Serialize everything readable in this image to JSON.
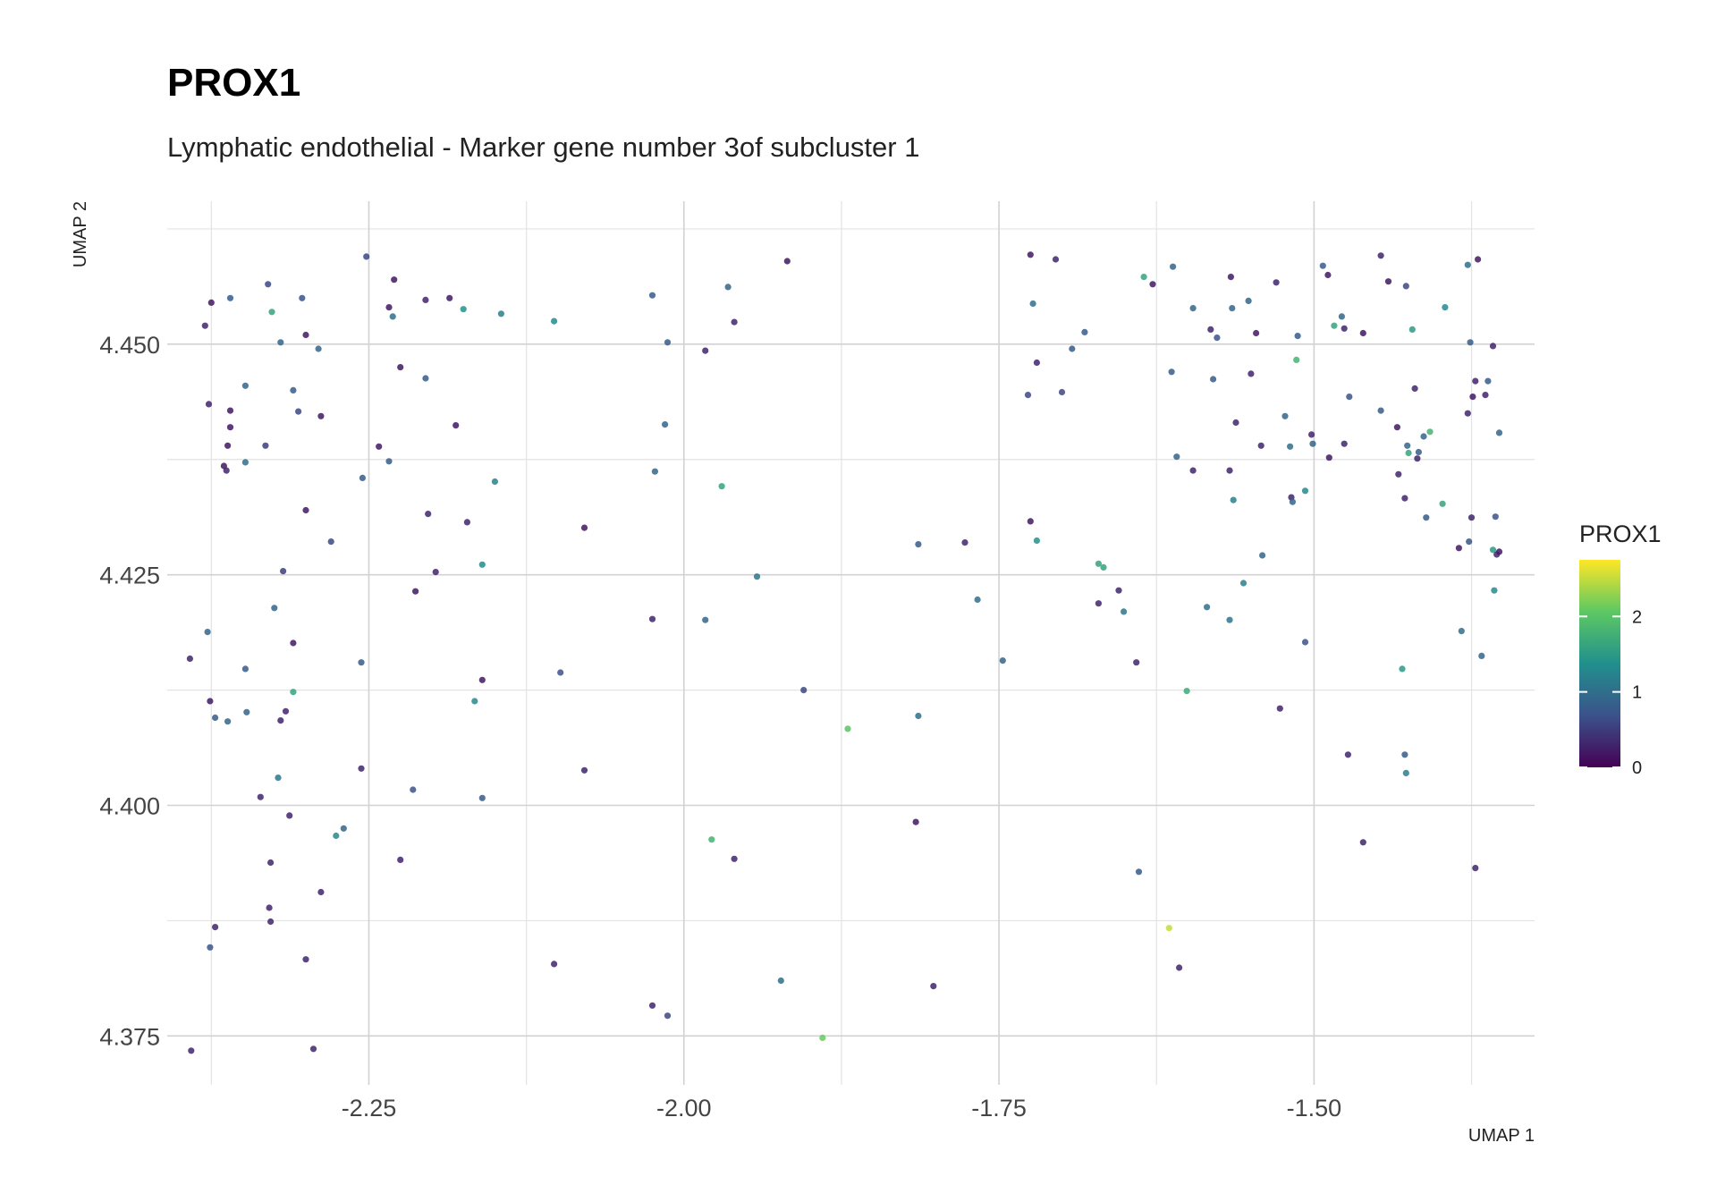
{
  "chart_data": {
    "type": "scatter",
    "title": "PROX1",
    "subtitle": "Lymphatic endothelial - Marker gene number 3of subcluster 1",
    "xlabel": "UMAP 1",
    "ylabel": "UMAP 2",
    "xlim": [
      -2.41,
      -1.325
    ],
    "ylim": [
      4.3697,
      4.4655
    ],
    "x_ticks": [
      -2.25,
      -2.0,
      -1.75,
      -1.5
    ],
    "x_tick_labels": [
      "-2.25",
      "-2.00",
      "-1.75",
      "-1.50"
    ],
    "y_ticks": [
      4.375,
      4.4,
      4.425,
      4.45
    ],
    "y_tick_labels": [
      "4.375",
      "4.400",
      "4.425",
      "4.450"
    ],
    "grid": true,
    "legend": {
      "title": "PROX1",
      "type": "colorbar",
      "placement": "right",
      "range": [
        0,
        2.75
      ],
      "ticks": [
        0,
        1,
        2
      ],
      "tick_labels": [
        "0",
        "1",
        "2"
      ],
      "colormap": "viridis",
      "colors": [
        "#440154",
        "#3b528b",
        "#21908c",
        "#5dc863",
        "#fde725"
      ]
    },
    "points": [
      [
        -2.375,
        4.4545,
        0.2
      ],
      [
        -2.38,
        4.452,
        0.3
      ],
      [
        -2.36,
        4.455,
        0.8
      ],
      [
        -2.33,
        4.4565,
        0.6
      ],
      [
        -2.327,
        4.4535,
        1.6
      ],
      [
        -2.303,
        4.455,
        0.7
      ],
      [
        -2.3,
        4.451,
        0.2
      ],
      [
        -2.32,
        4.4502,
        0.9
      ],
      [
        -2.29,
        4.4495,
        0.9
      ],
      [
        -2.252,
        4.4595,
        0.6
      ],
      [
        -2.23,
        4.457,
        0.2
      ],
      [
        -2.234,
        4.454,
        0.2
      ],
      [
        -2.231,
        4.453,
        1.0
      ],
      [
        -2.205,
        4.4548,
        0.3
      ],
      [
        -2.186,
        4.455,
        0.2
      ],
      [
        -2.175,
        4.4538,
        1.4
      ],
      [
        -2.145,
        4.4533,
        1.2
      ],
      [
        -2.103,
        4.4525,
        1.3
      ],
      [
        -2.025,
        4.4553,
        0.8
      ],
      [
        -2.013,
        4.4502,
        0.8
      ],
      [
        -1.965,
        4.4562,
        0.9
      ],
      [
        -1.96,
        4.4524,
        0.3
      ],
      [
        -1.918,
        4.459,
        0.2
      ],
      [
        -1.983,
        4.4493,
        0.3
      ],
      [
        -2.377,
        4.4435,
        0.3
      ],
      [
        -2.36,
        4.4428,
        0.2
      ],
      [
        -2.36,
        4.441,
        0.2
      ],
      [
        -2.362,
        4.439,
        0.2
      ],
      [
        -2.365,
        4.4368,
        0.2
      ],
      [
        -2.363,
        4.4363,
        0.3
      ],
      [
        -2.348,
        4.4455,
        0.9
      ],
      [
        -2.348,
        4.4372,
        1.0
      ],
      [
        -2.332,
        4.439,
        0.5
      ],
      [
        -2.31,
        4.445,
        0.8
      ],
      [
        -2.306,
        4.4427,
        0.6
      ],
      [
        -2.288,
        4.4422,
        0.2
      ],
      [
        -2.225,
        4.4475,
        0.2
      ],
      [
        -2.205,
        4.4463,
        0.8
      ],
      [
        -2.242,
        4.4389,
        0.2
      ],
      [
        -2.234,
        4.4373,
        0.8
      ],
      [
        -2.181,
        4.4412,
        0.2
      ],
      [
        -2.015,
        4.4413,
        0.9
      ],
      [
        -2.023,
        4.4362,
        0.9
      ],
      [
        -1.97,
        4.4346,
        1.6
      ],
      [
        -2.255,
        4.4355,
        0.8
      ],
      [
        -2.3,
        4.432,
        0.2
      ],
      [
        -2.28,
        4.4286,
        0.6
      ],
      [
        -2.203,
        4.4316,
        0.3
      ],
      [
        -2.172,
        4.4307,
        0.3
      ],
      [
        -2.15,
        4.4351,
        1.2
      ],
      [
        -2.16,
        4.4261,
        1.3
      ],
      [
        -2.079,
        4.4301,
        0.2
      ],
      [
        -1.942,
        4.4248,
        1.1
      ],
      [
        -2.318,
        4.4254,
        0.5
      ],
      [
        -2.213,
        4.4232,
        0.2
      ],
      [
        -2.197,
        4.4253,
        0.3
      ],
      [
        -2.025,
        4.4202,
        0.3
      ],
      [
        -1.983,
        4.4201,
        0.9
      ],
      [
        -2.378,
        4.4188,
        0.9
      ],
      [
        -2.392,
        4.4159,
        0.3
      ],
      [
        -2.325,
        4.4214,
        0.9
      ],
      [
        -2.31,
        4.4176,
        0.2
      ],
      [
        -2.348,
        4.4148,
        0.8
      ],
      [
        -2.376,
        4.4113,
        0.2
      ],
      [
        -2.372,
        4.4095,
        0.8
      ],
      [
        -2.362,
        4.4091,
        0.9
      ],
      [
        -2.347,
        4.4101,
        0.9
      ],
      [
        -2.31,
        4.4123,
        1.6
      ],
      [
        -2.316,
        4.4102,
        0.3
      ],
      [
        -2.32,
        4.4092,
        0.3
      ],
      [
        -2.256,
        4.4155,
        0.8
      ],
      [
        -2.16,
        4.4136,
        0.2
      ],
      [
        -2.166,
        4.4113,
        1.3
      ],
      [
        -2.098,
        4.4144,
        0.7
      ],
      [
        -1.905,
        4.4125,
        0.6
      ],
      [
        -1.87,
        4.4083,
        2.0
      ],
      [
        -1.814,
        4.4097,
        1.0
      ],
      [
        -2.322,
        4.403,
        1.1
      ],
      [
        -2.336,
        4.4009,
        0.3
      ],
      [
        -2.256,
        4.404,
        0.3
      ],
      [
        -2.215,
        4.4017,
        0.7
      ],
      [
        -2.16,
        4.4008,
        0.8
      ],
      [
        -2.079,
        4.4038,
        0.3
      ],
      [
        -2.313,
        4.3989,
        0.3
      ],
      [
        -2.27,
        4.3975,
        0.9
      ],
      [
        -2.276,
        4.3967,
        1.3
      ],
      [
        -1.978,
        4.3963,
        1.8
      ],
      [
        -1.96,
        4.3942,
        0.3
      ],
      [
        -1.816,
        4.3982,
        0.2
      ],
      [
        -2.328,
        4.3938,
        0.3
      ],
      [
        -2.225,
        4.3941,
        0.3
      ],
      [
        -2.288,
        4.3906,
        0.3
      ],
      [
        -2.329,
        4.3889,
        0.3
      ],
      [
        -2.328,
        4.3874,
        0.3
      ],
      [
        -2.372,
        4.3868,
        0.3
      ],
      [
        -2.376,
        4.3846,
        0.7
      ],
      [
        -2.3,
        4.3833,
        0.3
      ],
      [
        -2.103,
        4.3828,
        0.3
      ],
      [
        -1.923,
        4.381,
        1.0
      ],
      [
        -1.802,
        4.3804,
        0.3
      ],
      [
        -2.025,
        4.3783,
        0.3
      ],
      [
        -2.013,
        4.3772,
        0.6
      ],
      [
        -1.89,
        4.3748,
        2.1
      ],
      [
        -2.391,
        4.3734,
        0.3
      ],
      [
        -2.294,
        4.3736,
        0.3
      ],
      [
        -1.725,
        4.4597,
        0.2
      ],
      [
        -1.705,
        4.4592,
        0.3
      ],
      [
        -1.723,
        4.4544,
        1.0
      ],
      [
        -1.682,
        4.4513,
        0.8
      ],
      [
        -1.692,
        4.4495,
        0.8
      ],
      [
        -1.72,
        4.448,
        0.3
      ],
      [
        -1.727,
        4.4445,
        0.6
      ],
      [
        -1.7,
        4.4448,
        0.6
      ],
      [
        -1.635,
        4.4573,
        1.6
      ],
      [
        -1.628,
        4.4565,
        0.2
      ],
      [
        -1.612,
        4.4584,
        0.9
      ],
      [
        -1.596,
        4.4539,
        0.9
      ],
      [
        -1.582,
        4.4516,
        0.3
      ],
      [
        -1.577,
        4.4507,
        0.7
      ],
      [
        -1.566,
        4.4573,
        0.2
      ],
      [
        -1.565,
        4.4539,
        0.9
      ],
      [
        -1.552,
        4.4547,
        0.9
      ],
      [
        -1.546,
        4.4512,
        0.2
      ],
      [
        -1.53,
        4.4567,
        0.3
      ],
      [
        -1.513,
        4.4509,
        0.8
      ],
      [
        -1.493,
        4.4585,
        0.8
      ],
      [
        -1.489,
        4.4575,
        0.2
      ],
      [
        -1.484,
        4.452,
        1.6
      ],
      [
        -1.478,
        4.453,
        0.9
      ],
      [
        -1.476,
        4.4517,
        0.3
      ],
      [
        -1.461,
        4.4512,
        0.2
      ],
      [
        -1.447,
        4.4596,
        0.3
      ],
      [
        -1.441,
        4.4568,
        0.2
      ],
      [
        -1.427,
        4.4563,
        0.6
      ],
      [
        -1.422,
        4.4516,
        1.5
      ],
      [
        -1.396,
        4.454,
        1.3
      ],
      [
        -1.378,
        4.4586,
        1.0
      ],
      [
        -1.37,
        4.4592,
        0.2
      ],
      [
        -1.376,
        4.4502,
        0.8
      ],
      [
        -1.358,
        4.4498,
        0.3
      ],
      [
        -1.514,
        4.4483,
        1.8
      ],
      [
        -1.613,
        4.447,
        0.8
      ],
      [
        -1.58,
        4.4462,
        0.8
      ],
      [
        -1.55,
        4.4468,
        0.3
      ],
      [
        -1.472,
        4.4443,
        0.7
      ],
      [
        -1.447,
        4.4428,
        0.8
      ],
      [
        -1.42,
        4.4452,
        0.3
      ],
      [
        -1.372,
        4.446,
        0.3
      ],
      [
        -1.362,
        4.446,
        0.8
      ],
      [
        -1.374,
        4.4443,
        0.2
      ],
      [
        -1.364,
        4.4445,
        0.3
      ],
      [
        -1.378,
        4.4425,
        0.3
      ],
      [
        -1.353,
        4.4404,
        0.9
      ],
      [
        -1.562,
        4.4415,
        0.3
      ],
      [
        -1.523,
        4.4422,
        0.9
      ],
      [
        -1.502,
        4.4402,
        0.3
      ],
      [
        -1.501,
        4.4392,
        0.9
      ],
      [
        -1.476,
        4.4392,
        0.3
      ],
      [
        -1.488,
        4.4377,
        0.2
      ],
      [
        -1.434,
        4.441,
        0.2
      ],
      [
        -1.413,
        4.44,
        0.9
      ],
      [
        -1.408,
        4.4405,
        1.8
      ],
      [
        -1.426,
        4.439,
        0.9
      ],
      [
        -1.425,
        4.4382,
        1.6
      ],
      [
        -1.417,
        4.4383,
        0.8
      ],
      [
        -1.418,
        4.4376,
        0.3
      ],
      [
        -1.542,
        4.439,
        0.3
      ],
      [
        -1.519,
        4.4389,
        1.0
      ],
      [
        -1.609,
        4.4378,
        0.9
      ],
      [
        -1.596,
        4.4363,
        0.3
      ],
      [
        -1.567,
        4.4363,
        0.3
      ],
      [
        -1.564,
        4.4331,
        1.2
      ],
      [
        -1.518,
        4.4334,
        0.3
      ],
      [
        -1.517,
        4.4329,
        0.9
      ],
      [
        -1.507,
        4.4341,
        1.3
      ],
      [
        -1.433,
        4.4359,
        0.3
      ],
      [
        -1.428,
        4.4333,
        0.3
      ],
      [
        -1.411,
        4.4312,
        0.8
      ],
      [
        -1.398,
        4.4327,
        1.6
      ],
      [
        -1.375,
        4.4312,
        0.3
      ],
      [
        -1.356,
        4.4313,
        0.7
      ],
      [
        -1.385,
        4.4279,
        0.2
      ],
      [
        -1.377,
        4.4286,
        0.7
      ],
      [
        -1.358,
        4.4277,
        1.5
      ],
      [
        -1.355,
        4.4272,
        0.3
      ],
      [
        -1.353,
        4.4275,
        0.2
      ],
      [
        -1.725,
        4.4308,
        0.2
      ],
      [
        -1.72,
        4.4287,
        1.4
      ],
      [
        -1.777,
        4.4285,
        0.3
      ],
      [
        -1.814,
        4.4283,
        0.8
      ],
      [
        -1.671,
        4.4262,
        1.6
      ],
      [
        -1.667,
        4.4258,
        1.6
      ],
      [
        -1.541,
        4.4271,
        0.9
      ],
      [
        -1.556,
        4.4241,
        1.2
      ],
      [
        -1.585,
        4.4215,
        1.0
      ],
      [
        -1.567,
        4.4201,
        1.1
      ],
      [
        -1.507,
        4.4177,
        0.7
      ],
      [
        -1.383,
        4.4189,
        1.0
      ],
      [
        -1.357,
        4.4233,
        1.3
      ],
      [
        -1.367,
        4.4162,
        0.9
      ],
      [
        -1.655,
        4.4233,
        0.3
      ],
      [
        -1.651,
        4.421,
        1.1
      ],
      [
        -1.671,
        4.4219,
        0.3
      ],
      [
        -1.767,
        4.4223,
        1.0
      ],
      [
        -1.747,
        4.4157,
        0.9
      ],
      [
        -1.641,
        4.4155,
        0.3
      ],
      [
        -1.601,
        4.4124,
        1.7
      ],
      [
        -1.43,
        4.4148,
        1.5
      ],
      [
        -1.527,
        4.4105,
        0.3
      ],
      [
        -1.473,
        4.4055,
        0.3
      ],
      [
        -1.428,
        4.4055,
        0.8
      ],
      [
        -1.427,
        4.4035,
        1.2
      ],
      [
        -1.639,
        4.3928,
        0.8
      ],
      [
        -1.461,
        4.396,
        0.3
      ],
      [
        -1.372,
        4.3932,
        0.3
      ],
      [
        -1.615,
        4.3867,
        2.5
      ],
      [
        -1.607,
        4.3824,
        0.3
      ]
    ]
  }
}
